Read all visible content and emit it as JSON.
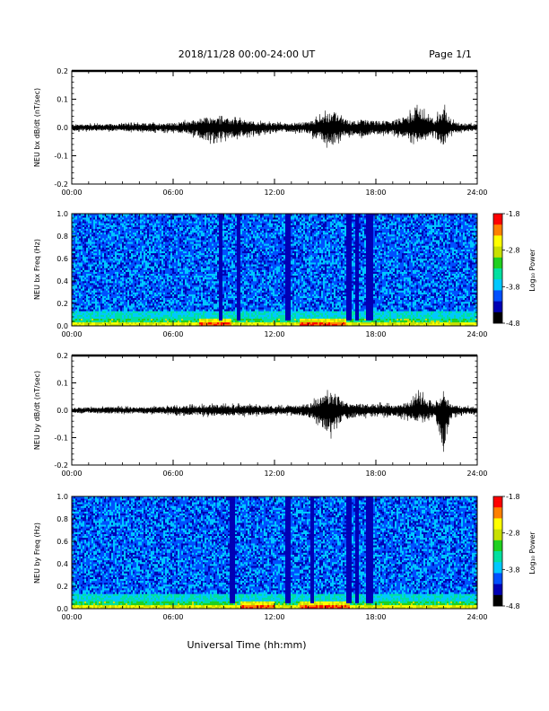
{
  "header": {
    "title": "2018/11/28  00:00-24:00 UT",
    "page": "Page 1/1"
  },
  "xlabel": "Universal Time (hh:mm)",
  "colors": {
    "trace": "#000000",
    "colormap": [
      "#000000",
      "#0000b4",
      "#0050ff",
      "#00c8ff",
      "#00e0a0",
      "#20d020",
      "#c8e000",
      "#ffff00",
      "#ff8000",
      "#ff0000"
    ]
  },
  "chart_data": [
    {
      "type": "line",
      "ylabel": "NEU bx dB/dt (nT/sec)",
      "xlim": [
        0,
        24
      ],
      "x_ticks": [
        "00:00",
        "06:00",
        "12:00",
        "18:00",
        "24:00"
      ],
      "ylim": [
        -0.2,
        0.2
      ],
      "y_ticks": [
        "-0.2",
        "-0.1",
        "0.0",
        "0.1",
        "0.2"
      ],
      "envelope": {
        "x": [
          0,
          2,
          4,
          6,
          7,
          8,
          9,
          10,
          11,
          12,
          13,
          14,
          14.5,
          15,
          15.5,
          16,
          16.5,
          17,
          18,
          19,
          20,
          20.5,
          21,
          21.5,
          22,
          22.5,
          23,
          24
        ],
        "max": [
          0.015,
          0.015,
          0.018,
          0.02,
          0.03,
          0.045,
          0.04,
          0.035,
          0.025,
          0.02,
          0.02,
          0.025,
          0.04,
          0.06,
          0.075,
          0.04,
          0.03,
          0.035,
          0.03,
          0.03,
          0.06,
          0.11,
          0.05,
          0.04,
          0.09,
          0.03,
          0.02,
          0.015
        ],
        "min": [
          -0.015,
          -0.015,
          -0.018,
          -0.02,
          -0.03,
          -0.06,
          -0.05,
          -0.04,
          -0.03,
          -0.02,
          -0.02,
          -0.03,
          -0.05,
          -0.07,
          -0.08,
          -0.04,
          -0.035,
          -0.04,
          -0.03,
          -0.03,
          -0.05,
          -0.07,
          -0.04,
          -0.05,
          -0.08,
          -0.03,
          -0.02,
          -0.015
        ]
      }
    },
    {
      "type": "heatmap",
      "ylabel": "NEU bx Freq (Hz)",
      "xlim": [
        0,
        24
      ],
      "x_ticks": [
        "00:00",
        "06:00",
        "12:00",
        "18:00",
        "24:00"
      ],
      "ylim": [
        0,
        1
      ],
      "y_ticks": [
        "0.0",
        "0.2",
        "0.4",
        "0.6",
        "0.8",
        "1.0"
      ],
      "colorbar": {
        "label": "Log₁₀ Power",
        "range": [
          -4.8,
          -1.8
        ],
        "ticks": [
          "-1.8",
          "-2.8",
          "-3.8",
          "-4.8"
        ]
      },
      "dark_bands": [
        16.4,
        16.9,
        17.5,
        17.7,
        12.8,
        8.8,
        9.9
      ],
      "low_freq_hot": [
        [
          7.5,
          9.5
        ],
        [
          13.5,
          16.2
        ]
      ]
    },
    {
      "type": "line",
      "ylabel": "NEU by dB/dt (nT/sec)",
      "xlim": [
        0,
        24
      ],
      "x_ticks": [
        "00:00",
        "06:00",
        "12:00",
        "18:00",
        "24:00"
      ],
      "ylim": [
        -0.2,
        0.2
      ],
      "y_ticks": [
        "-0.2",
        "-0.1",
        "0.0",
        "0.1",
        "0.2"
      ],
      "envelope": {
        "x": [
          0,
          2,
          4,
          6,
          8,
          10,
          12,
          13,
          14,
          14.5,
          15,
          15.5,
          16,
          16.5,
          17,
          18,
          19,
          20,
          20.5,
          21,
          21.5,
          22,
          22.5,
          23,
          24
        ],
        "max": [
          0.012,
          0.015,
          0.015,
          0.018,
          0.025,
          0.025,
          0.02,
          0.02,
          0.03,
          0.05,
          0.07,
          0.085,
          0.05,
          0.035,
          0.03,
          0.03,
          0.025,
          0.04,
          0.1,
          0.04,
          0.03,
          0.07,
          0.03,
          0.02,
          0.015
        ],
        "min": [
          -0.012,
          -0.015,
          -0.015,
          -0.018,
          -0.025,
          -0.025,
          -0.02,
          -0.02,
          -0.03,
          -0.05,
          -0.09,
          -0.11,
          -0.05,
          -0.035,
          -0.03,
          -0.03,
          -0.025,
          -0.04,
          -0.05,
          -0.04,
          -0.03,
          -0.2,
          -0.03,
          -0.02,
          -0.015
        ]
      }
    },
    {
      "type": "heatmap",
      "ylabel": "NEU by Freq (Hz)",
      "xlim": [
        0,
        24
      ],
      "x_ticks": [
        "00:00",
        "06:00",
        "12:00",
        "18:00",
        "24:00"
      ],
      "ylim": [
        0,
        1
      ],
      "y_ticks": [
        "0.0",
        "0.2",
        "0.4",
        "0.6",
        "0.8",
        "1.0"
      ],
      "colorbar": {
        "label": "Log₁₀ Power",
        "range": [
          -4.8,
          -1.8
        ],
        "ticks": [
          "-1.8",
          "-2.8",
          "-3.8",
          "-4.8"
        ]
      },
      "dark_bands": [
        16.4,
        16.9,
        17.5,
        17.7,
        12.8,
        9.5,
        14.2
      ],
      "low_freq_hot": [
        [
          13.5,
          16.5
        ],
        [
          10,
          12
        ]
      ]
    }
  ]
}
